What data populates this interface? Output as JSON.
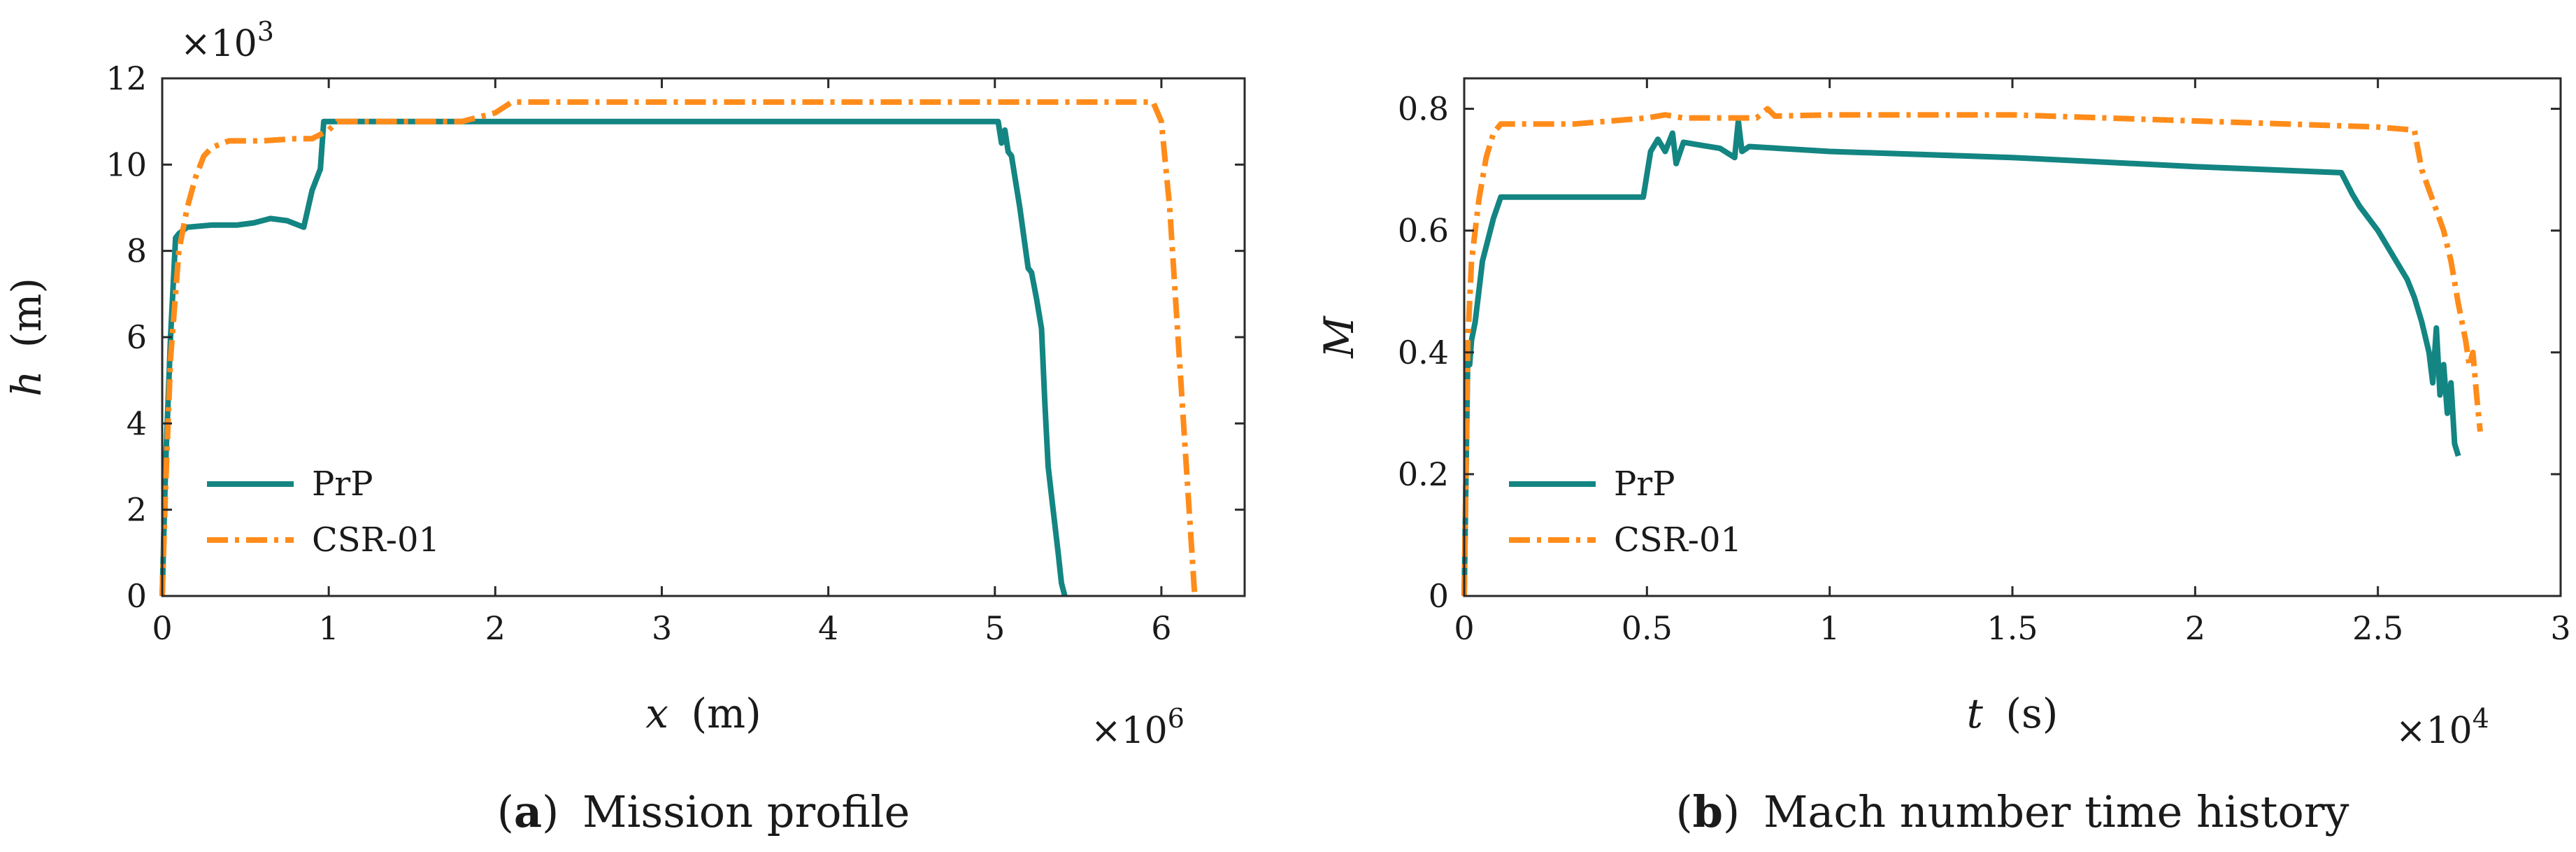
{
  "colors": {
    "prp": "#138582",
    "csr": "#ff8c1a",
    "axis": "#2a2a2a",
    "text": "#1a1a1a"
  },
  "chart_data": [
    {
      "type": "line",
      "caption_label": "a",
      "caption_text": "Mission profile",
      "caption_open": "(",
      "caption_close": ")",
      "ylabel_var": "h",
      "ylabel_unit": "(m)",
      "xlabel_var": "x",
      "xlabel_unit": "(m)",
      "x_multiplier": {
        "base": "×10",
        "exp": "6"
      },
      "y_multiplier": {
        "base": "×10",
        "exp": "3"
      },
      "xlim": [
        0,
        6.5
      ],
      "ylim": [
        0,
        12
      ],
      "xticks": [
        0,
        1,
        2,
        3,
        4,
        5,
        6
      ],
      "yticks": [
        0,
        2,
        4,
        6,
        8,
        10,
        12
      ],
      "legend_position": "lower-left",
      "series": [
        {
          "name": "PrP",
          "style": "solid",
          "x": [
            0,
            0.02,
            0.05,
            0.08,
            0.1,
            0.15,
            0.3,
            0.45,
            0.55,
            0.65,
            0.75,
            0.85,
            0.9,
            0.95,
            0.97,
            1.0,
            1.5,
            2.0,
            3.0,
            4.0,
            5.02,
            5.04,
            5.06,
            5.08,
            5.1,
            5.15,
            5.2,
            5.22,
            5.25,
            5.28,
            5.3,
            5.32,
            5.35,
            5.38,
            5.4,
            5.42
          ],
          "y": [
            0,
            3.0,
            6.0,
            8.3,
            8.4,
            8.55,
            8.6,
            8.6,
            8.65,
            8.75,
            8.7,
            8.55,
            9.4,
            9.9,
            11.0,
            11.0,
            11.0,
            11.0,
            11.0,
            11.0,
            11.0,
            10.5,
            10.8,
            10.3,
            10.2,
            9.0,
            7.6,
            7.5,
            6.9,
            6.2,
            4.5,
            3.0,
            2.0,
            1.0,
            0.3,
            0.0
          ]
        },
        {
          "name": "CSR-01",
          "style": "dashdot",
          "x": [
            0,
            0.02,
            0.05,
            0.1,
            0.15,
            0.2,
            0.25,
            0.3,
            0.4,
            0.6,
            0.8,
            0.9,
            1.0,
            1.05,
            1.1,
            1.5,
            1.8,
            1.9,
            2.0,
            2.1,
            2.2,
            3.0,
            4.0,
            5.0,
            5.5,
            5.95,
            6.0,
            6.05,
            6.1,
            6.15,
            6.2
          ],
          "y": [
            0,
            2.5,
            5.5,
            8.0,
            9.0,
            9.7,
            10.2,
            10.4,
            10.55,
            10.55,
            10.6,
            10.6,
            10.8,
            11.0,
            11.0,
            11.0,
            11.0,
            11.1,
            11.2,
            11.45,
            11.45,
            11.45,
            11.45,
            11.45,
            11.45,
            11.45,
            11.0,
            9.0,
            6.0,
            3.0,
            0.0
          ]
        }
      ]
    },
    {
      "type": "line",
      "caption_label": "b",
      "caption_text": "Mach number time history",
      "caption_open": "(",
      "caption_close": ")",
      "ylabel_var": "M",
      "ylabel_unit": "",
      "xlabel_var": "t",
      "xlabel_unit": "(s)",
      "x_multiplier": {
        "base": "×10",
        "exp": "4"
      },
      "xlim": [
        0,
        3
      ],
      "ylim": [
        0,
        0.85
      ],
      "xticks": [
        0,
        0.5,
        1,
        1.5,
        2,
        2.5,
        3
      ],
      "yticks": [
        0,
        0.2,
        0.4,
        0.6,
        0.8
      ],
      "legend_position": "lower-left",
      "series": [
        {
          "name": "PrP",
          "style": "solid",
          "x": [
            0,
            0.005,
            0.01,
            0.015,
            0.02,
            0.03,
            0.05,
            0.08,
            0.1,
            0.3,
            0.49,
            0.51,
            0.53,
            0.55,
            0.57,
            0.58,
            0.6,
            0.65,
            0.7,
            0.74,
            0.75,
            0.76,
            0.78,
            1.0,
            1.5,
            2.0,
            2.4,
            2.43,
            2.45,
            2.5,
            2.55,
            2.58,
            2.6,
            2.62,
            2.64,
            2.65,
            2.66,
            2.67,
            2.68,
            2.69,
            2.7,
            2.71,
            2.72
          ],
          "y": [
            0,
            0.2,
            0.4,
            0.38,
            0.42,
            0.45,
            0.55,
            0.62,
            0.655,
            0.655,
            0.655,
            0.73,
            0.75,
            0.73,
            0.76,
            0.71,
            0.745,
            0.74,
            0.735,
            0.72,
            0.78,
            0.73,
            0.738,
            0.73,
            0.72,
            0.705,
            0.695,
            0.66,
            0.64,
            0.6,
            0.55,
            0.52,
            0.49,
            0.45,
            0.4,
            0.35,
            0.44,
            0.33,
            0.38,
            0.3,
            0.35,
            0.25,
            0.23
          ]
        },
        {
          "name": "CSR-01",
          "style": "dashdot",
          "x": [
            0,
            0.01,
            0.02,
            0.04,
            0.06,
            0.08,
            0.1,
            0.3,
            0.5,
            0.55,
            0.6,
            0.7,
            0.8,
            0.83,
            0.85,
            1.0,
            1.5,
            2.0,
            2.5,
            2.6,
            2.62,
            2.65,
            2.68,
            2.7,
            2.72,
            2.74,
            2.75,
            2.76,
            2.77,
            2.78
          ],
          "y": [
            0,
            0.42,
            0.55,
            0.65,
            0.72,
            0.76,
            0.775,
            0.775,
            0.785,
            0.79,
            0.785,
            0.785,
            0.785,
            0.8,
            0.788,
            0.79,
            0.79,
            0.78,
            0.77,
            0.765,
            0.7,
            0.65,
            0.6,
            0.55,
            0.48,
            0.42,
            0.38,
            0.4,
            0.33,
            0.27
          ]
        }
      ]
    }
  ]
}
